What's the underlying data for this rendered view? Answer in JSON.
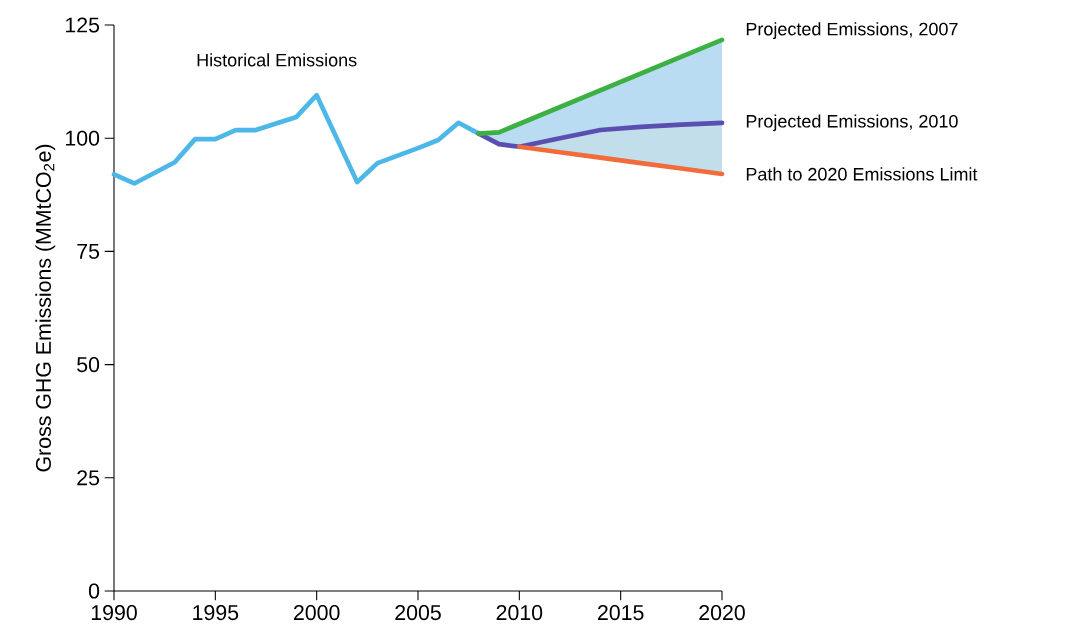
{
  "chart_data": {
    "type": "line",
    "ylabel": "Gross GHG Emissions (MMtCO$_{2}$e)",
    "xlim": [
      1990,
      2020
    ],
    "xticks": [
      1990,
      1995,
      2000,
      2005,
      2010,
      2015,
      2020
    ],
    "ylim": [
      0,
      125
    ],
    "yticks": [
      0,
      25,
      50,
      75,
      100,
      125
    ],
    "grid": false,
    "legend": false,
    "marker": "none",
    "line_style": "solid",
    "series": [
      {
        "name": "Historical Emissions",
        "color": "#4db8e8",
        "x": [
          1990,
          1991,
          1993,
          1994,
          1995,
          1996,
          1997,
          1999,
          2000,
          2002,
          2003,
          2005,
          2006,
          2007,
          2008
        ],
        "values": [
          92,
          90,
          94.7,
          99.8,
          99.8,
          101.8,
          101.8,
          104.7,
          109.5,
          90.3,
          94.5,
          97.8,
          99.6,
          103.4,
          101
        ]
      },
      {
        "name": "Projected Emissions, 2010",
        "color": "#5a4fb0",
        "x": [
          2008,
          2009,
          2010,
          2012,
          2014,
          2016,
          2018,
          2020
        ],
        "values": [
          101,
          98.7,
          98.1,
          100,
          101.8,
          102.5,
          103,
          103.4
        ],
        "lower": [
          101,
          98.7,
          98.1,
          100,
          101.8,
          102.5,
          103,
          103.4
        ],
        "upper": [
          101,
          101.3,
          103.2,
          106.9,
          110.6,
          114.3,
          118,
          121.7
        ]
      },
      {
        "name": "Projected Emissions, 2007",
        "color": "#3cb043",
        "x": [
          2008,
          2009,
          2020
        ],
        "values": [
          101,
          101.3,
          121.7
        ]
      },
      {
        "name": "Path to 2020 Emissions Limit",
        "color": "#f26b3a",
        "x": [
          2010,
          2012,
          2014,
          2016,
          2018,
          2020
        ],
        "values": [
          98.1,
          96.9,
          95.7,
          94.5,
          93.3,
          92.1
        ],
        "lower": [
          98.1,
          96.9,
          95.7,
          94.5,
          93.3,
          92.1
        ],
        "upper": [
          98.1,
          100,
          101.8,
          102.5,
          103,
          103.4
        ]
      }
    ]
  }
}
